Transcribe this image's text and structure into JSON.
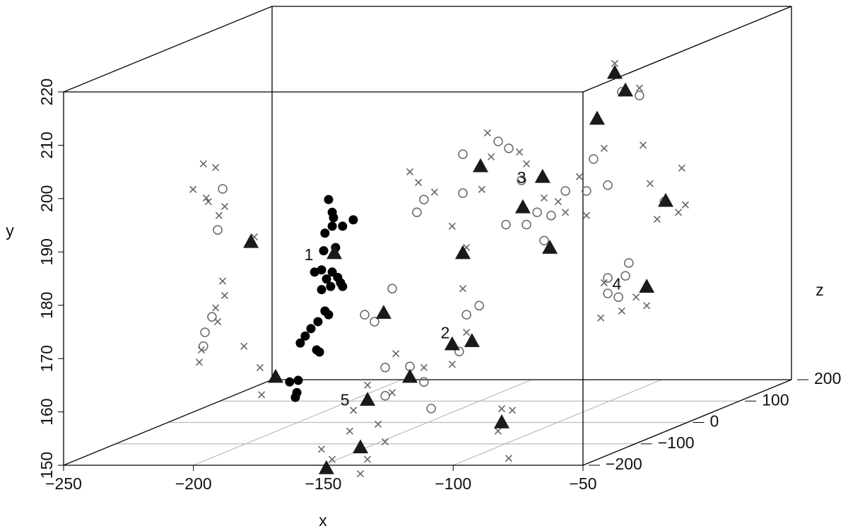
{
  "chart_data": {
    "type": "scatter3d",
    "xlabel": "x",
    "ylabel": "y",
    "zlabel": "z",
    "xlim": [
      -250,
      -50
    ],
    "ylim": [
      150,
      220
    ],
    "zlim": [
      -200,
      200
    ],
    "xticks": [
      {
        "value": -250,
        "label": "−250"
      },
      {
        "value": -200,
        "label": "−200"
      },
      {
        "value": -150,
        "label": "−150"
      },
      {
        "value": -100,
        "label": "−100"
      },
      {
        "value": -50,
        "label": "−50"
      }
    ],
    "yticks": [
      150,
      160,
      170,
      180,
      190,
      200,
      210,
      220
    ],
    "zticks": [
      {
        "value": -200,
        "label": "−200"
      },
      {
        "value": -100,
        "label": "−100"
      },
      0,
      100,
      200
    ],
    "floor_grid": true,
    "grid_color": "#bbbbbb",
    "series": [
      {
        "marker": "cross",
        "color": "#666666",
        "x": [
          -236.3,
          -231.6,
          -240.3,
          -234.4,
          -228.1,
          -230.3,
          -235.2,
          -216.7,
          -228.9,
          -228.1,
          -231.6,
          -230.8,
          -237.1,
          -237.9,
          -220.7,
          -214.5,
          -213.9,
          -156.8,
          -153.5,
          -147.3,
          -140.5,
          -126.9,
          -125.5,
          -129.1,
          -114.6,
          -111.9,
          -105.1,
          -99.7,
          -96.9,
          -91.5,
          -88.8,
          -82.0,
          -77.9,
          -68.4,
          -67.0,
          -64.3,
          -52.1,
          -53.4,
          -50.7,
          -61.6,
          -83.3,
          -75.2,
          -65.6,
          -69.7,
          -82.0,
          -173.1,
          -163.6,
          -162.2,
          -151.4,
          -140.5,
          -135.0,
          -136.4,
          -135.0,
          -150.7,
          -146.6,
          -135.7,
          -133.0,
          -139.8,
          -138.4,
          -128.9,
          -126.2,
          -81.3,
          -77.2,
          -78.6,
          -82.7
        ],
        "y": [
          198.5,
          197.8,
          193.7,
          191.4,
          190.5,
          188.8,
          192.1,
          184.8,
          176.5,
          173.8,
          171.5,
          168.9,
          163.6,
          161.3,
          164.3,
          160.3,
          155.2,
          197.0,
          195.0,
          193.2,
          186.8,
          204.3,
          199.8,
          193.7,
          200.7,
          198.5,
          192.1,
          191.4,
          189.4,
          196.1,
          188.8,
          201.4,
          217.3,
          212.7,
          202.0,
          194.8,
          197.7,
          189.4,
          190.8,
          188.1,
          169.6,
          170.9,
          171.9,
          173.5,
          176.2,
          157.0,
          155.6,
          162.9,
          160.3,
          160.9,
          166.9,
          175.1,
          182.8,
          153.0,
          151.1,
          148.4,
          151.1,
          156.4,
          160.3,
          157.7,
          154.4,
          160.6,
          160.3,
          151.3,
          156.4
        ],
        "z": [
          0,
          0,
          0,
          0,
          0,
          0,
          0,
          0,
          0,
          0,
          0,
          0,
          0,
          0,
          0,
          0,
          0,
          0,
          0,
          0,
          0,
          0,
          0,
          0,
          0,
          0,
          0,
          0,
          0,
          0,
          0,
          0,
          0,
          0,
          0,
          0,
          0,
          0,
          0,
          0,
          0,
          0,
          0,
          0,
          0,
          0,
          0,
          0,
          0,
          0,
          0,
          0,
          0,
          -200,
          -200,
          -200,
          -200,
          -200,
          -200,
          -200,
          -200,
          -200,
          -200,
          -200,
          -200
        ]
      },
      {
        "marker": "circle",
        "color": "#666666",
        "x": [
          -228.9,
          -233.0,
          -235.7,
          -236.3,
          -230.8,
          -154.1,
          -151.4,
          -136.4,
          -136.4,
          -118.7,
          -122.8,
          -113.8,
          -107.8,
          -105.1,
          -96.9,
          -88.8,
          -86.1,
          -80.6,
          -75.2,
          -68.4,
          -58.8,
          -80.6,
          -73.8,
          -80.6,
          -76.5,
          -72.5,
          -163.6,
          -170.4,
          -166.3,
          -156.8,
          -148.6,
          -174.2,
          -135.0,
          -130.1,
          -137.8,
          -151.4,
          -166.3,
          -102.4,
          -111.9,
          -119.8
        ],
        "y": [
          193.8,
          169.8,
          166.9,
          164.3,
          186.1,
          189.4,
          191.8,
          200.3,
          193.0,
          201.4,
          202.7,
          195.4,
          189.4,
          184.1,
          193.4,
          193.4,
          199.4,
          194.5,
          212.0,
          211.3,
          191.4,
          177.1,
          177.5,
          174.2,
          173.5,
          179.9,
          175.1,
          168.9,
          160.3,
          160.5,
          152.6,
          170.2,
          170.2,
          171.9,
          163.3,
          157.6,
          155.0,
          188.8,
          187.1,
          187.1
        ],
        "z": [
          0,
          0,
          0,
          0,
          0,
          0,
          0,
          0,
          0,
          0,
          0,
          0,
          0,
          0,
          0,
          0,
          0,
          0,
          0,
          0,
          0,
          0,
          0,
          0,
          0,
          0,
          0,
          0,
          0,
          0,
          0,
          0,
          0,
          0,
          0,
          0,
          0,
          0,
          0,
          0
        ]
      },
      {
        "marker": "filled-circle",
        "color": "#000000",
        "x": [
          -188.1,
          -186.2,
          -189.5,
          -182.7,
          -178.6,
          -186.7,
          -190.0,
          -185.4,
          -193.5,
          -190.8,
          -188.9,
          -186.7,
          -184.6,
          -183.5,
          -187.3,
          -190.8,
          -189.5,
          -188.1,
          -192.2,
          -194.9,
          -197.1,
          -199.0,
          -192.7,
          -191.6,
          -203.1,
          -199.8,
          -200.3,
          -200.9,
          -186.7,
          -182.7
        ],
        "y": [
          191.8,
          188.4,
          185.5,
          186.8,
          188.0,
          186.8,
          182.2,
          182.8,
          178.2,
          178.6,
          176.9,
          178.2,
          177.2,
          176.2,
          175.5,
          174.9,
          170.9,
          170.2,
          168.9,
          167.6,
          166.2,
          164.9,
          163.6,
          163.2,
          157.6,
          157.9,
          155.6,
          154.7,
          189.4,
          175.5
        ],
        "z": [
          0,
          0,
          0,
          0,
          0,
          0,
          0,
          0,
          0,
          0,
          0,
          0,
          0,
          0,
          0,
          0,
          0,
          0,
          0,
          0,
          0,
          0,
          0,
          0,
          0,
          0,
          0,
          0,
          0,
          0
        ]
      },
      {
        "marker": "triangle",
        "color": "#1a1a1a",
        "x": [
          -218.0,
          -208.5,
          -185.9,
          -166.9,
          -156.8,
          -173.1,
          -135.7,
          -148.8,
          -140.5,
          -132.9,
          -136.4,
          -129.6,
          -113.3,
          -105.7,
          -102.9,
          -81.3,
          -84.7,
          -77.9,
          -73.8,
          -65.6,
          -58.3
        ],
        "y": [
          183.9,
          158.6,
          181.8,
          170.6,
          158.6,
          154.3,
          153.4,
          149.5,
          164.7,
          165.3,
          181.8,
          198.1,
          190.4,
          196.1,
          182.8,
          158.1,
          207.0,
          215.6,
          212.3,
          175.5,
          191.6
        ],
        "z": [
          0,
          0,
          0,
          0,
          0,
          0,
          -200,
          -200,
          0,
          0,
          0,
          0,
          0,
          0,
          0,
          -200,
          0,
          0,
          0,
          0,
          0
        ]
      }
    ],
    "annotations": [
      {
        "text": "1",
        "x": -195.7,
        "y": 181.2,
        "z": 0
      },
      {
        "text": "2",
        "x": -143.2,
        "y": 166.6,
        "z": 0
      },
      {
        "text": "3",
        "x": -113.8,
        "y": 195.7,
        "z": 0
      },
      {
        "text": "4",
        "x": -77.1,
        "y": 175.7,
        "z": 0
      },
      {
        "text": "5",
        "x": -181.8,
        "y": 154.0,
        "z": 0
      }
    ]
  }
}
